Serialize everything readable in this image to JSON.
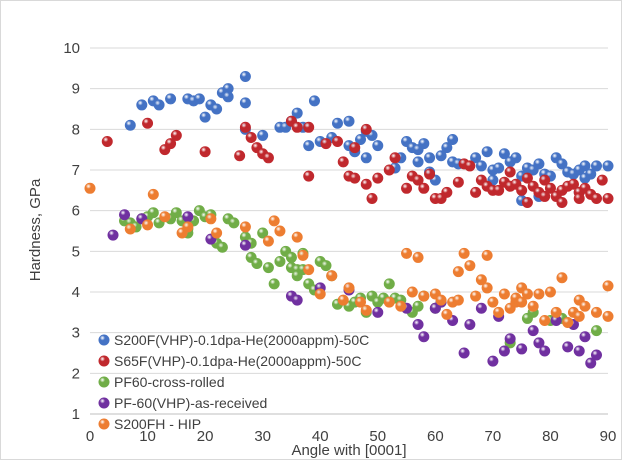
{
  "chart_data": {
    "type": "scatter",
    "title": "",
    "xlabel": "Angle with [0001]",
    "ylabel": "Hardness, GPa",
    "xlim": [
      0,
      90
    ],
    "ylim": [
      1,
      10
    ],
    "x_ticks": [
      0,
      10,
      20,
      30,
      40,
      50,
      60,
      70,
      80,
      90
    ],
    "y_ticks": [
      1,
      2,
      3,
      4,
      5,
      6,
      7,
      8,
      9,
      10
    ],
    "grid": "horizontal",
    "legend_position": "bottom-left",
    "series": [
      {
        "name": "S200F(VHP)-0.1dpa-He(2000appm)-50C",
        "color": "#4472C4",
        "points": [
          [
            7,
            8.1
          ],
          [
            9,
            8.6
          ],
          [
            11,
            8.7
          ],
          [
            12,
            8.6
          ],
          [
            14,
            8.75
          ],
          [
            17,
            8.75
          ],
          [
            18,
            8.7
          ],
          [
            19,
            8.75
          ],
          [
            20,
            8.3
          ],
          [
            21,
            8.6
          ],
          [
            22,
            8.5
          ],
          [
            23,
            8.9
          ],
          [
            24,
            9.0
          ],
          [
            24,
            8.8
          ],
          [
            27,
            9.3
          ],
          [
            27,
            8.65
          ],
          [
            27,
            8.0
          ],
          [
            30,
            7.85
          ],
          [
            33,
            8.05
          ],
          [
            34,
            8.05
          ],
          [
            35,
            8.2
          ],
          [
            36,
            8.4
          ],
          [
            37,
            8.05
          ],
          [
            38,
            7.6
          ],
          [
            39,
            8.7
          ],
          [
            40,
            7.7
          ],
          [
            42,
            7.8
          ],
          [
            43,
            8.15
          ],
          [
            45,
            7.6
          ],
          [
            45,
            8.2
          ],
          [
            46,
            7.45
          ],
          [
            47,
            7.75
          ],
          [
            48,
            7.95
          ],
          [
            48,
            7.3
          ],
          [
            49,
            7.85
          ],
          [
            50,
            7.6
          ],
          [
            53,
            7.05
          ],
          [
            54,
            7.3
          ],
          [
            55,
            7.7
          ],
          [
            56,
            7.55
          ],
          [
            57,
            7.2
          ],
          [
            57,
            7.5
          ],
          [
            58,
            7.65
          ],
          [
            59,
            7.3
          ],
          [
            59,
            6.95
          ],
          [
            60,
            6.75
          ],
          [
            61,
            7.35
          ],
          [
            62,
            7.55
          ],
          [
            63,
            7.75
          ],
          [
            63,
            7.2
          ],
          [
            64,
            7.15
          ],
          [
            67,
            7.3
          ],
          [
            68,
            7.1
          ],
          [
            69,
            7.45
          ],
          [
            70,
            7.0
          ],
          [
            70,
            6.75
          ],
          [
            71,
            7.05
          ],
          [
            72,
            7.4
          ],
          [
            73,
            7.2
          ],
          [
            74,
            7.3
          ],
          [
            75,
            6.25
          ],
          [
            75,
            6.85
          ],
          [
            76,
            7.05
          ],
          [
            77,
            7.0
          ],
          [
            78,
            7.15
          ],
          [
            78,
            6.35
          ],
          [
            79,
            6.9
          ],
          [
            80,
            6.85
          ],
          [
            81,
            7.3
          ],
          [
            82,
            7.15
          ],
          [
            83,
            6.95
          ],
          [
            84,
            6.9
          ],
          [
            85,
            7.0
          ],
          [
            85,
            6.45
          ],
          [
            86,
            6.8
          ],
          [
            86,
            7.1
          ],
          [
            87,
            6.9
          ],
          [
            88,
            7.1
          ],
          [
            90,
            7.1
          ]
        ]
      },
      {
        "name": "S65F(VHP)-0.1dpa-He(2000appm)-50C",
        "color": "#C0282D",
        "points": [
          [
            3,
            7.7
          ],
          [
            10,
            8.15
          ],
          [
            13,
            7.5
          ],
          [
            14,
            7.65
          ],
          [
            15,
            7.85
          ],
          [
            20,
            7.45
          ],
          [
            26,
            7.35
          ],
          [
            27,
            8.05
          ],
          [
            28,
            7.8
          ],
          [
            29,
            7.55
          ],
          [
            30,
            7.4
          ],
          [
            31,
            7.3
          ],
          [
            35,
            8.2
          ],
          [
            36,
            8.05
          ],
          [
            38,
            8.05
          ],
          [
            38,
            6.85
          ],
          [
            41,
            7.65
          ],
          [
            43,
            7.7
          ],
          [
            44,
            7.2
          ],
          [
            45,
            6.85
          ],
          [
            46,
            6.8
          ],
          [
            46,
            7.55
          ],
          [
            48,
            6.65
          ],
          [
            48,
            8.0
          ],
          [
            49,
            6.3
          ],
          [
            50,
            6.8
          ],
          [
            52,
            7.0
          ],
          [
            53,
            7.3
          ],
          [
            55,
            6.55
          ],
          [
            56,
            6.85
          ],
          [
            57,
            6.75
          ],
          [
            58,
            6.55
          ],
          [
            59,
            6.9
          ],
          [
            60,
            6.3
          ],
          [
            61,
            6.3
          ],
          [
            62,
            6.45
          ],
          [
            64,
            6.7
          ],
          [
            65,
            7.15
          ],
          [
            66,
            7.1
          ],
          [
            67,
            6.45
          ],
          [
            68,
            6.75
          ],
          [
            69,
            6.6
          ],
          [
            70,
            6.5
          ],
          [
            71,
            6.5
          ],
          [
            72,
            6.7
          ],
          [
            73,
            6.95
          ],
          [
            73,
            6.6
          ],
          [
            74,
            6.65
          ],
          [
            75,
            6.5
          ],
          [
            76,
            6.8
          ],
          [
            76,
            6.2
          ],
          [
            77,
            6.6
          ],
          [
            78,
            6.45
          ],
          [
            79,
            6.75
          ],
          [
            79,
            6.35
          ],
          [
            80,
            6.55
          ],
          [
            81,
            6.35
          ],
          [
            82,
            6.5
          ],
          [
            82,
            6.2
          ],
          [
            83,
            6.6
          ],
          [
            84,
            6.65
          ],
          [
            85,
            6.45
          ],
          [
            85,
            6.3
          ],
          [
            86,
            6.55
          ],
          [
            87,
            6.4
          ],
          [
            88,
            6.3
          ],
          [
            89,
            6.75
          ],
          [
            90,
            6.3
          ]
        ]
      },
      {
        "name": "PF60-cross-rolled",
        "color": "#70AD47",
        "points": [
          [
            6,
            5.75
          ],
          [
            7,
            5.7
          ],
          [
            8,
            5.6
          ],
          [
            9,
            5.8
          ],
          [
            10,
            5.85
          ],
          [
            11,
            5.95
          ],
          [
            12,
            5.7
          ],
          [
            14,
            5.8
          ],
          [
            15,
            5.95
          ],
          [
            16,
            5.75
          ],
          [
            17,
            5.55
          ],
          [
            17,
            5.45
          ],
          [
            18,
            5.75
          ],
          [
            19,
            6.0
          ],
          [
            20,
            5.85
          ],
          [
            21,
            5.9
          ],
          [
            22,
            5.2
          ],
          [
            23,
            5.1
          ],
          [
            24,
            5.8
          ],
          [
            25,
            5.7
          ],
          [
            27,
            5.35
          ],
          [
            28,
            4.85
          ],
          [
            28,
            5.2
          ],
          [
            29,
            4.7
          ],
          [
            30,
            5.45
          ],
          [
            31,
            4.6
          ],
          [
            32,
            4.2
          ],
          [
            33,
            4.75
          ],
          [
            34,
            5.0
          ],
          [
            35,
            4.6
          ],
          [
            35,
            4.85
          ],
          [
            36,
            4.55
          ],
          [
            36,
            4.4
          ],
          [
            37,
            4.55
          ],
          [
            37,
            4.95
          ],
          [
            38,
            4.2
          ],
          [
            39,
            4.05
          ],
          [
            40,
            4.75
          ],
          [
            41,
            4.65
          ],
          [
            42,
            4.4
          ],
          [
            43,
            3.7
          ],
          [
            45,
            3.65
          ],
          [
            46,
            3.75
          ],
          [
            47,
            3.85
          ],
          [
            48,
            3.5
          ],
          [
            49,
            3.9
          ],
          [
            50,
            3.75
          ],
          [
            51,
            3.85
          ],
          [
            52,
            4.2
          ],
          [
            53,
            3.85
          ],
          [
            54,
            3.8
          ],
          [
            56,
            3.5
          ],
          [
            57,
            3.65
          ],
          [
            58,
            3.9
          ],
          [
            60,
            3.6
          ],
          [
            61,
            3.75
          ],
          [
            73,
            2.75
          ],
          [
            76,
            3.35
          ],
          [
            77,
            3.5
          ],
          [
            80,
            3.3
          ],
          [
            82,
            3.35
          ],
          [
            88,
            3.05
          ]
        ]
      },
      {
        "name": "PF-60(VHP)-as-received",
        "color": "#7030A0",
        "points": [
          [
            4,
            5.4
          ],
          [
            6,
            5.9
          ],
          [
            9,
            5.8
          ],
          [
            17,
            5.85
          ],
          [
            21,
            5.3
          ],
          [
            27,
            5.15
          ],
          [
            35,
            3.9
          ],
          [
            36,
            3.8
          ],
          [
            40,
            4.1
          ],
          [
            45,
            4.05
          ],
          [
            50,
            3.5
          ],
          [
            55,
            3.6
          ],
          [
            57,
            3.2
          ],
          [
            58,
            2.9
          ],
          [
            60,
            3.6
          ],
          [
            61,
            3.75
          ],
          [
            63,
            3.3
          ],
          [
            65,
            2.5
          ],
          [
            66,
            3.2
          ],
          [
            68,
            3.6
          ],
          [
            70,
            2.3
          ],
          [
            71,
            3.4
          ],
          [
            72,
            2.55
          ],
          [
            73,
            2.85
          ],
          [
            75,
            2.6
          ],
          [
            77,
            3.05
          ],
          [
            78,
            2.75
          ],
          [
            79,
            2.55
          ],
          [
            81,
            3.3
          ],
          [
            83,
            2.65
          ],
          [
            84,
            3.2
          ],
          [
            85,
            2.55
          ],
          [
            86,
            2.9
          ],
          [
            87,
            2.25
          ],
          [
            88,
            2.45
          ]
        ]
      },
      {
        "name": "S200FH - HIP",
        "color": "#ED7D31",
        "points": [
          [
            0,
            6.55
          ],
          [
            7,
            5.55
          ],
          [
            10,
            5.65
          ],
          [
            11,
            6.4
          ],
          [
            13,
            5.85
          ],
          [
            16,
            5.45
          ],
          [
            17,
            5.6
          ],
          [
            21,
            5.8
          ],
          [
            22,
            5.45
          ],
          [
            27,
            5.6
          ],
          [
            31,
            5.25
          ],
          [
            32,
            5.75
          ],
          [
            33,
            5.5
          ],
          [
            36,
            5.35
          ],
          [
            37,
            4.9
          ],
          [
            38,
            4.55
          ],
          [
            40,
            3.95
          ],
          [
            42,
            4.4
          ],
          [
            44,
            3.8
          ],
          [
            45,
            4.1
          ],
          [
            47,
            3.75
          ],
          [
            48,
            3.55
          ],
          [
            52,
            3.75
          ],
          [
            54,
            3.65
          ],
          [
            55,
            4.95
          ],
          [
            56,
            4.0
          ],
          [
            57,
            4.85
          ],
          [
            58,
            3.9
          ],
          [
            60,
            3.95
          ],
          [
            61,
            3.8
          ],
          [
            62,
            3.45
          ],
          [
            63,
            3.75
          ],
          [
            64,
            4.5
          ],
          [
            64,
            3.8
          ],
          [
            65,
            4.95
          ],
          [
            66,
            4.65
          ],
          [
            67,
            3.9
          ],
          [
            68,
            4.3
          ],
          [
            69,
            4.1
          ],
          [
            69,
            4.9
          ],
          [
            70,
            3.75
          ],
          [
            71,
            3.5
          ],
          [
            72,
            3.95
          ],
          [
            73,
            3.6
          ],
          [
            74,
            3.75
          ],
          [
            74,
            3.85
          ],
          [
            75,
            4.1
          ],
          [
            75,
            3.75
          ],
          [
            76,
            3.95
          ],
          [
            77,
            3.65
          ],
          [
            78,
            3.95
          ],
          [
            79,
            3.3
          ],
          [
            80,
            4.0
          ],
          [
            81,
            3.5
          ],
          [
            82,
            4.35
          ],
          [
            83,
            3.25
          ],
          [
            84,
            3.5
          ],
          [
            85,
            3.8
          ],
          [
            85,
            3.4
          ],
          [
            86,
            3.65
          ],
          [
            88,
            3.5
          ],
          [
            90,
            4.15
          ],
          [
            90,
            3.4
          ]
        ]
      }
    ]
  }
}
